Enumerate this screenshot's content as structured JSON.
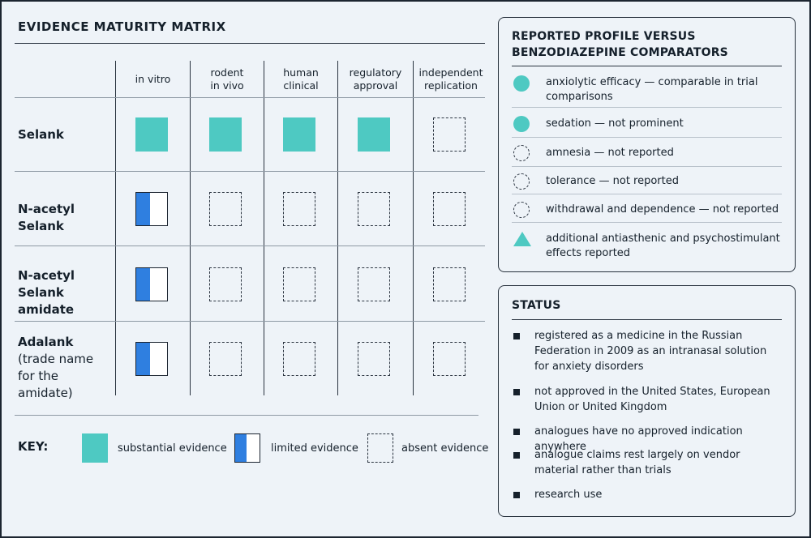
{
  "matrix": {
    "title": "EVIDENCE MATURITY MATRIX",
    "columns": [
      "in vitro",
      "rodent\nin vivo",
      "human\nclinical",
      "regulatory\napproval",
      "independent\nreplication"
    ],
    "rows": [
      {
        "name": "Selank",
        "note": "",
        "evidence": [
          "substantial",
          "substantial",
          "substantial",
          "substantial",
          "absent"
        ]
      },
      {
        "name": "N-acetyl Selank",
        "note": "",
        "evidence": [
          "limited",
          "absent",
          "absent",
          "absent",
          "absent"
        ]
      },
      {
        "name": "N-acetyl Selank amidate",
        "note": "",
        "evidence": [
          "limited",
          "absent",
          "absent",
          "absent",
          "absent"
        ]
      },
      {
        "name": "Adalank",
        "note": "(trade name for the amidate)",
        "evidence": [
          "limited",
          "absent",
          "absent",
          "absent",
          "absent"
        ]
      }
    ]
  },
  "key": {
    "label": "KEY:",
    "items": [
      {
        "type": "substantial",
        "label": "substantial evidence"
      },
      {
        "type": "limited",
        "label": "limited evidence"
      },
      {
        "type": "absent",
        "label": "absent evidence"
      }
    ]
  },
  "profile": {
    "title_line1": "REPORTED PROFILE VERSUS",
    "title_line2": "BENZODIAZEPINE COMPARATORS",
    "items": [
      {
        "symbol": "filled-circle",
        "text": "anxiolytic efficacy — comparable in trial comparisons"
      },
      {
        "symbol": "filled-circle",
        "text": "sedation — not prominent"
      },
      {
        "symbol": "dashed-circle",
        "text": "amnesia — not reported"
      },
      {
        "symbol": "dashed-circle",
        "text": "tolerance — not reported"
      },
      {
        "symbol": "dashed-circle",
        "text": "withdrawal and dependence — not reported"
      },
      {
        "symbol": "filled-triangle",
        "text": "additional antiasthenic and psychostimulant effects reported"
      }
    ]
  },
  "status": {
    "title": "STATUS",
    "items": [
      "registered as a medicine in the Russian Federation in 2009 as an intranasal solution for anxiety disorders",
      "not approved in the United States, European Union or United Kingdom",
      "analogues have no approved indication anywhere",
      "analogue claims rest largely on vendor material rather than trials",
      "research use"
    ]
  },
  "colors": {
    "substantial": "#4ec9c2",
    "limited": "#2f7fe0",
    "background": "#eef3f8"
  }
}
